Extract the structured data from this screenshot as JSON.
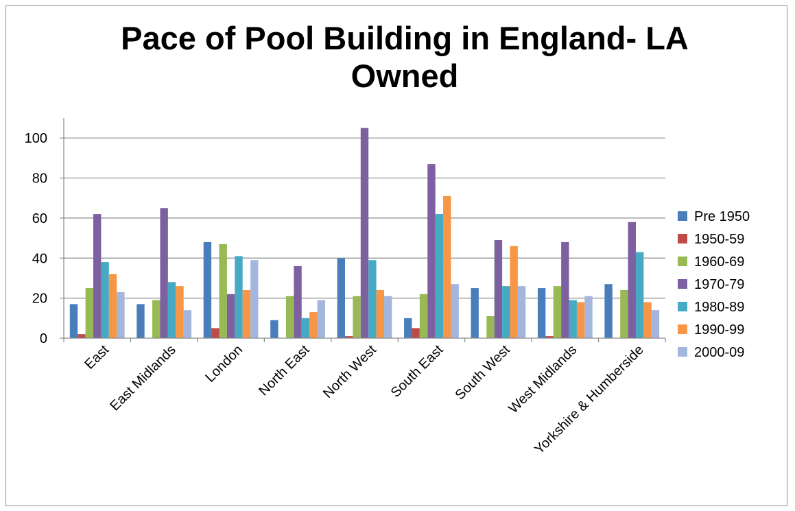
{
  "chart_data": {
    "type": "bar",
    "title": "Pace of Pool Building in England- LA Owned",
    "xlabel": "",
    "ylabel": "",
    "ylim": [
      0,
      110
    ],
    "yticks": [
      0,
      20,
      40,
      60,
      80,
      100
    ],
    "grid": true,
    "legend_position": "right",
    "categories": [
      "East",
      "East Midlands",
      "London",
      "North East",
      "North West",
      "South East",
      "South West",
      "West Midlands",
      "Yorkshire & Humberside"
    ],
    "series": [
      {
        "name": "Pre 1950",
        "color": "#4a7ebb",
        "values": [
          17,
          17,
          48,
          9,
          40,
          10,
          25,
          25,
          27
        ]
      },
      {
        "name": "1950-59",
        "color": "#be4b48",
        "values": [
          2,
          0,
          5,
          0,
          1,
          5,
          0,
          1,
          0
        ]
      },
      {
        "name": "1960-69",
        "color": "#98b954",
        "values": [
          25,
          19,
          47,
          21,
          21,
          22,
          11,
          26,
          24
        ]
      },
      {
        "name": "1970-79",
        "color": "#7d60a0",
        "values": [
          62,
          65,
          22,
          36,
          105,
          87,
          49,
          48,
          58
        ]
      },
      {
        "name": "1980-89",
        "color": "#46aac5",
        "values": [
          38,
          28,
          41,
          10,
          39,
          62,
          26,
          19,
          43
        ]
      },
      {
        "name": "1990-99",
        "color": "#f79646",
        "values": [
          32,
          26,
          24,
          13,
          24,
          71,
          46,
          18,
          18
        ]
      },
      {
        "name": "2000-09",
        "color": "#a5b6dc",
        "values": [
          23,
          14,
          39,
          19,
          21,
          27,
          26,
          21,
          14
        ]
      }
    ]
  }
}
